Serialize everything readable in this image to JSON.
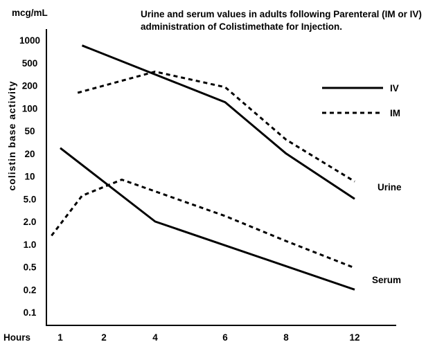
{
  "chart_data": {
    "type": "line",
    "title": [
      "Urine and serum values in adults following Parenteral (IM or IV)",
      "administration of Colistimethate for Injection."
    ],
    "y_unit": "mcg/mL",
    "ylabel": "colistin base activity",
    "xlabel": "Hours",
    "x_ticks": [
      "1",
      "2",
      "4",
      "6",
      "8",
      "12"
    ],
    "y_ticks": [
      "1000",
      "500",
      "200",
      "100",
      "50",
      "20",
      "10",
      "5.0",
      "2.0",
      "1.0",
      "0.5",
      "0.2",
      "0.1"
    ],
    "y_scale": "log",
    "ylim": [
      0.1,
      1000
    ],
    "grid": false,
    "legend_position": "top-right",
    "series": [
      {
        "name": "IV",
        "line_style": "solid",
        "color": "#000000",
        "urine": {
          "x": [
            1.5,
            6,
            8,
            12
          ],
          "y": [
            850,
            120,
            20,
            5
          ]
        },
        "serum": {
          "x": [
            1,
            4,
            12
          ],
          "y": [
            25,
            2,
            0.2
          ]
        }
      },
      {
        "name": "IM",
        "line_style": "dotted",
        "color": "#000000",
        "urine": {
          "x": [
            1.4,
            4,
            6,
            8,
            12
          ],
          "y": [
            160,
            350,
            190,
            35,
            8.5
          ]
        },
        "serum": {
          "x": [
            0.8,
            1.5,
            2.7,
            6,
            8,
            12
          ],
          "y": [
            1.3,
            5.5,
            9,
            2.5,
            1.1,
            0.48
          ]
        }
      }
    ],
    "curve_labels": {
      "urine": "Urine",
      "serum": "Serum"
    }
  }
}
